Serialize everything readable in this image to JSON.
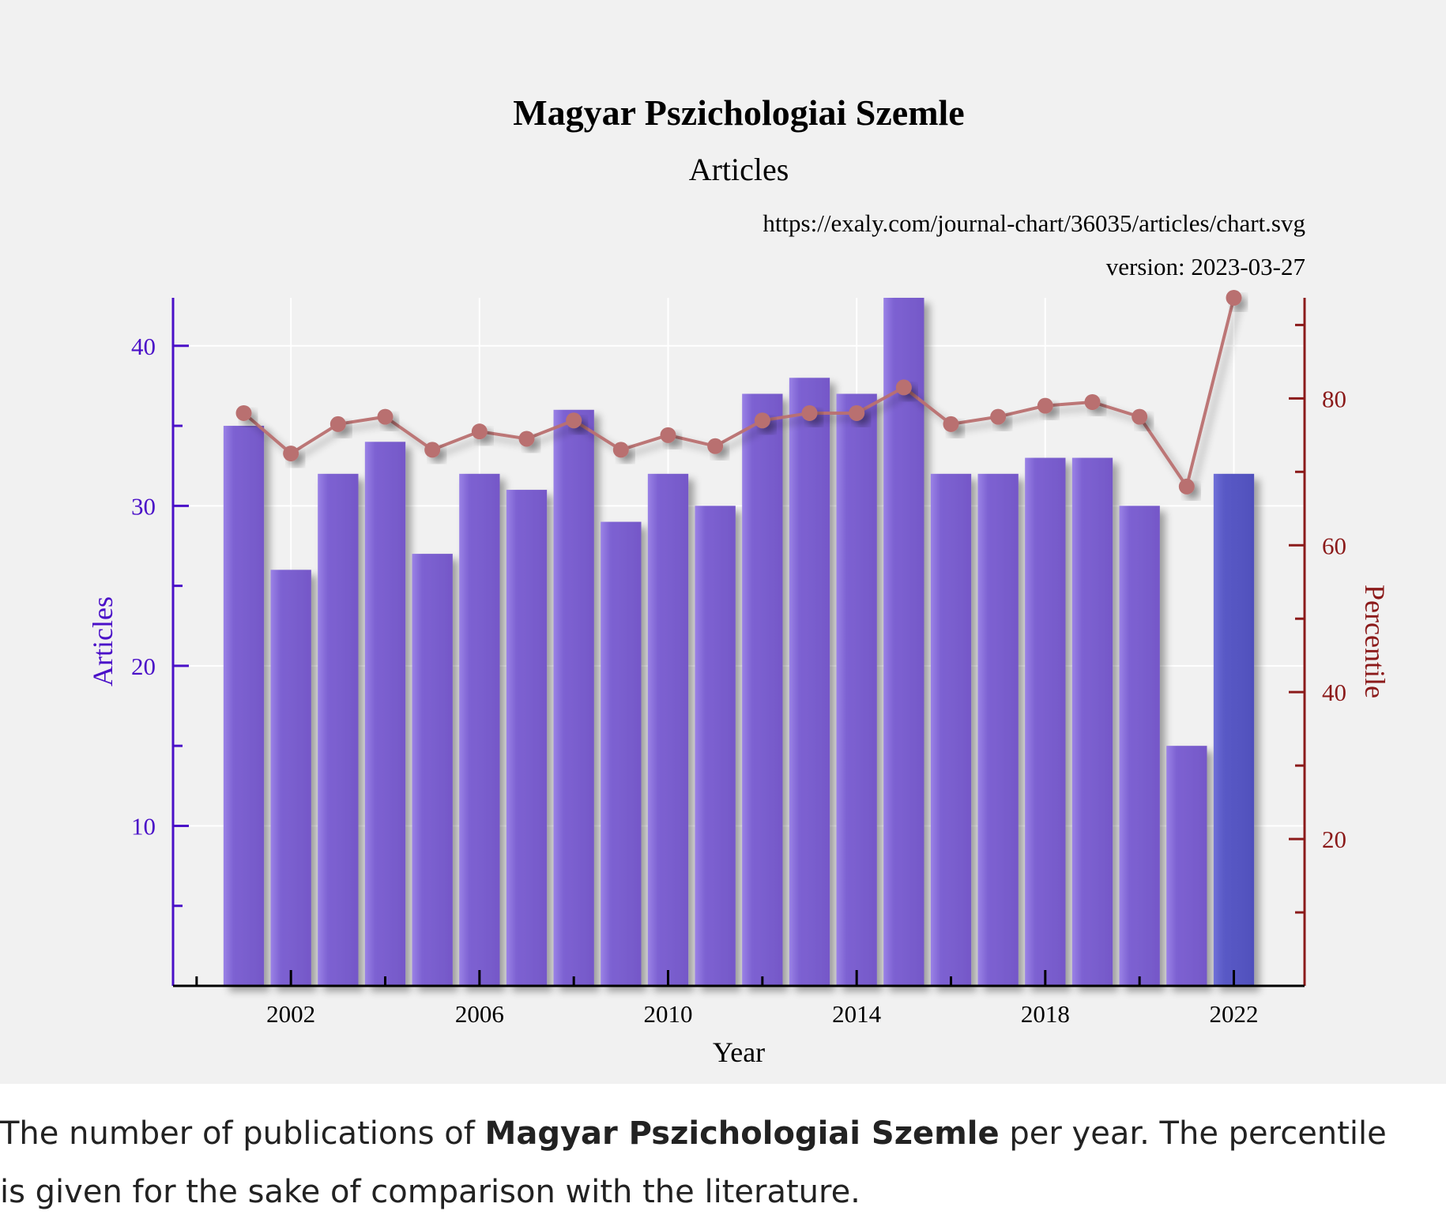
{
  "chart_data": {
    "type": "bar",
    "title": "Magyar Pszichologiai Szemle",
    "subtitle": "Articles",
    "source_url": "https://exaly.com/journal-chart/36035/articles/chart.svg",
    "version": "version: 2023-03-27",
    "xlabel": "Year",
    "ylabel": "Articles",
    "y2label": "Percentile",
    "xlim": [
      1999.5,
      2023.5
    ],
    "ylim": [
      0,
      43
    ],
    "y2lim": [
      0,
      93.7
    ],
    "x_ticks": [
      2002,
      2006,
      2010,
      2014,
      2018,
      2022
    ],
    "y_ticks": [
      10,
      20,
      30,
      40
    ],
    "y2_ticks": [
      20,
      40,
      60,
      80
    ],
    "grid": true,
    "colors": {
      "bars": "#7a5fd0",
      "bar_highlight": "#5555c0",
      "percentile_line": "#b97070",
      "left_axis": "#4a10c8",
      "right_axis": "#8b1a1a"
    },
    "series": [
      {
        "name": "Articles",
        "type": "bar",
        "x": [
          2001,
          2002,
          2003,
          2004,
          2005,
          2006,
          2007,
          2008,
          2009,
          2010,
          2011,
          2012,
          2013,
          2014,
          2015,
          2016,
          2017,
          2018,
          2019,
          2020,
          2021,
          2022
        ],
        "values": [
          35,
          26,
          32,
          34,
          27,
          32,
          31,
          36,
          29,
          32,
          30,
          37,
          38,
          37,
          43,
          32,
          32,
          33,
          33,
          30,
          15,
          32
        ]
      },
      {
        "name": "Percentile",
        "type": "line",
        "axis": "right",
        "x": [
          2001,
          2002,
          2003,
          2004,
          2005,
          2006,
          2007,
          2008,
          2009,
          2010,
          2011,
          2012,
          2013,
          2014,
          2015,
          2016,
          2017,
          2018,
          2019,
          2020,
          2021,
          2022
        ],
        "values": [
          78,
          72.5,
          76.5,
          77.5,
          73,
          75.5,
          74.5,
          77,
          73,
          75,
          73.5,
          77,
          78,
          78,
          81.5,
          76.5,
          77.5,
          79,
          79.5,
          77.5,
          68,
          93.7
        ]
      }
    ]
  },
  "caption": {
    "before": "The number of publications of ",
    "bold": "Magyar Pszichologiai Szemle",
    "after": " per year. The percentile is given for the sake of comparison with the literature."
  }
}
